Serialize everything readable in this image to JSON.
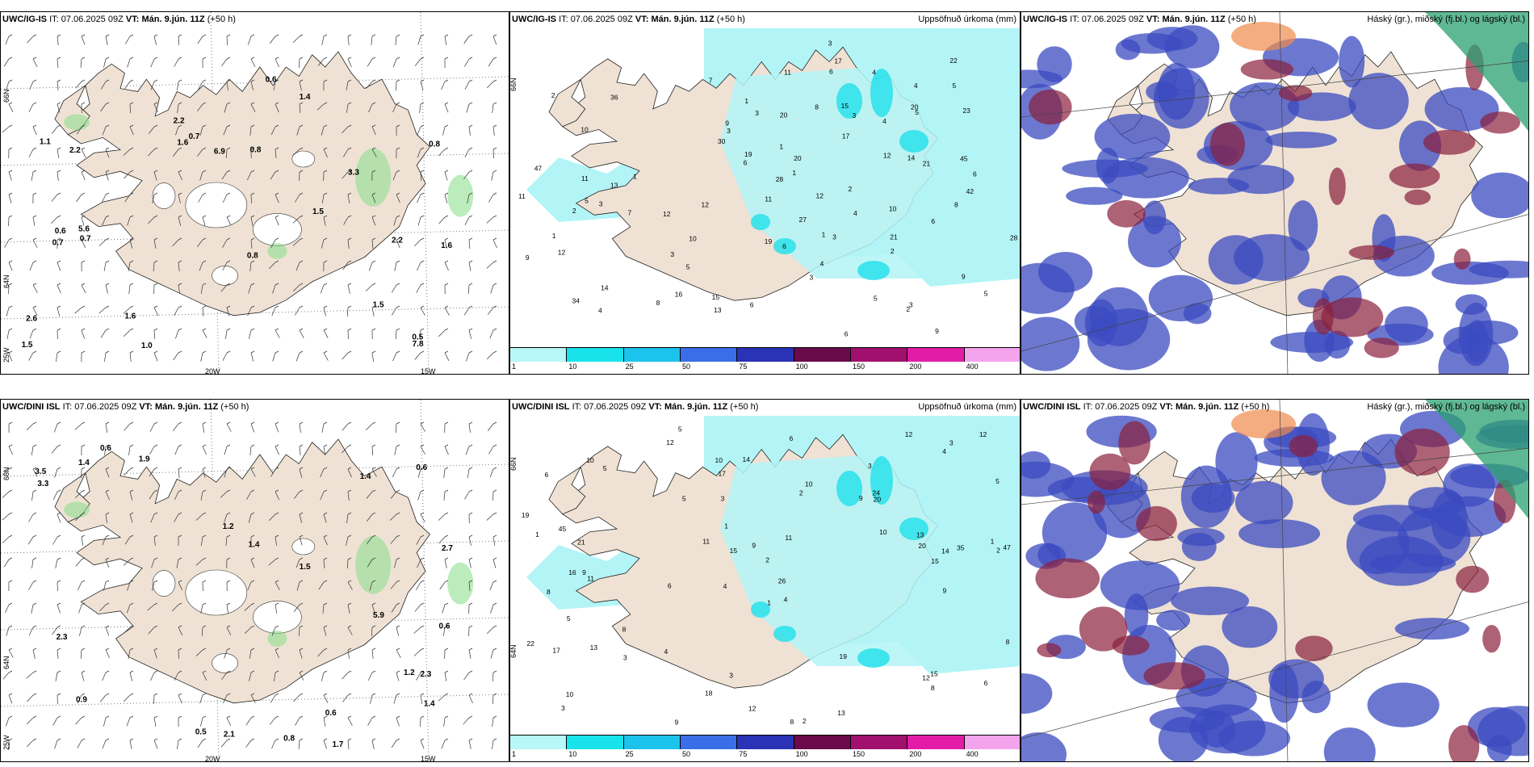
{
  "rows": [
    {
      "model": "UWC/IG-IS",
      "it_label": "IT:",
      "it_value": "07.06.2025 09Z",
      "vt_label": "VT:",
      "vt_value": "Mán. 9.jún. 11Z",
      "lead": "(+50 h)"
    },
    {
      "model": "UWC/DINI ISL",
      "it_label": "IT:",
      "it_value": "07.06.2025 09Z",
      "vt_label": "VT:",
      "vt_value": "Mán. 9.jún. 11Z",
      "lead": "(+50 h)"
    }
  ],
  "precip_title": "Uppsöfnuð úrkoma (mm)",
  "cloud_title": "Háský (gr.), miðský (fj.bl.) og lágský (bl.)",
  "axis_labels": {
    "lon_20": "20W",
    "lon_15": "15W",
    "lat_66": "66N",
    "lat_64": "64N",
    "lon_25": "25W"
  },
  "colorbar": {
    "ticks": [
      "1",
      "10",
      "25",
      "50",
      "75",
      "100",
      "150",
      "200",
      "400"
    ],
    "colors": [
      "#b8f7f7",
      "#18e3eb",
      "#1cc3ec",
      "#3a6de8",
      "#2a32b6",
      "#6a0a4a",
      "#a0106c",
      "#e31ca8",
      "#f4a4ec"
    ]
  },
  "colors": {
    "land": "#efe2d4",
    "precip_light": "#b3f5f7",
    "precip_mid": "#1fe0ea",
    "cloud_low": "#3b4bc0",
    "cloud_mid": "#8a1f3c",
    "cloud_high": "#f08a4c"
  },
  "top_wind_values": [
    "0.7",
    "0.8",
    "1.5",
    "1.6",
    "1.5",
    "0.8",
    "0.6",
    "2.6",
    "6.9",
    "1.0",
    "1.4",
    "2.2",
    "0.8",
    "0.5",
    "1.6",
    "3.3",
    "0.7",
    "0.7",
    "0.6",
    "1.5",
    "5.6",
    "2.2",
    "7.8",
    "1.6",
    "2.2",
    "1.1"
  ],
  "bottom_wind_values": [
    "0.9",
    "0.6",
    "2.3",
    "2.7",
    "1.9",
    "3.3",
    "0.6",
    "0.6",
    "1.2",
    "2.1",
    "0.5",
    "1.5",
    "2.3",
    "5.9",
    "1.4",
    "1.4",
    "1.4",
    "0.8",
    "1.7",
    "1.2",
    "3.5",
    "1.4",
    "0.6"
  ],
  "top_precip_values": [
    "9",
    "3",
    "1",
    "2",
    "9",
    "10",
    "14",
    "12",
    "4",
    "3",
    "3",
    "2",
    "5",
    "7",
    "12",
    "12",
    "10",
    "28",
    "47",
    "34",
    "22",
    "20",
    "14",
    "28",
    "42",
    "11",
    "7",
    "11",
    "6",
    "5",
    "3",
    "2",
    "3",
    "15",
    "9",
    "6",
    "8",
    "5",
    "4",
    "6",
    "10",
    "6",
    "16",
    "3",
    "12",
    "13",
    "23",
    "17",
    "8",
    "19",
    "4",
    "45",
    "21",
    "21",
    "30",
    "11",
    "13",
    "19",
    "27",
    "12",
    "15",
    "20",
    "36",
    "11",
    "9",
    "1",
    "1",
    "1",
    "4",
    "5",
    "2",
    "6",
    "3",
    "5",
    "17",
    "6",
    "1",
    "4",
    "5",
    "6",
    "2",
    "20",
    "3",
    "4",
    "1",
    "8",
    "3"
  ],
  "bottom_precip_values": [
    "5",
    "3",
    "2",
    "4",
    "4",
    "9",
    "6",
    "9",
    "8",
    "2",
    "2",
    "3",
    "12",
    "6",
    "8",
    "2",
    "3",
    "12",
    "10",
    "8",
    "21",
    "16",
    "47",
    "35",
    "22",
    "45",
    "15",
    "20",
    "15",
    "17",
    "12",
    "10",
    "13",
    "11",
    "19",
    "8",
    "13",
    "18",
    "12",
    "14",
    "10",
    "9",
    "13",
    "10",
    "12",
    "20",
    "8",
    "24",
    "19",
    "26",
    "17",
    "15",
    "11",
    "4",
    "6",
    "3",
    "1",
    "9",
    "3",
    "3",
    "6",
    "9",
    "5",
    "4",
    "1",
    "1",
    "14",
    "11",
    "5",
    "5",
    "5",
    "10",
    "1"
  ]
}
